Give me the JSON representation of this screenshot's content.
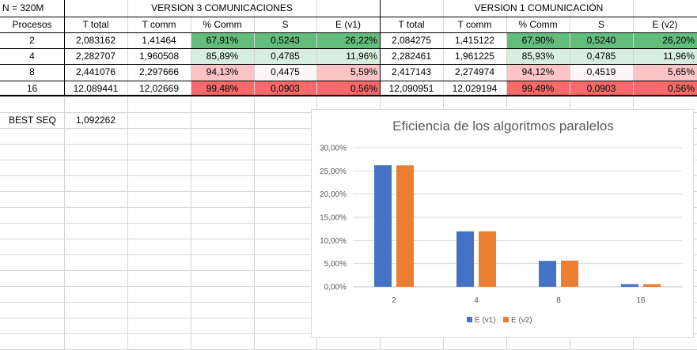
{
  "sheet": {
    "corner_label": "N = 320M",
    "group_headers": [
      "VERSION 3 COMUNICACIONES",
      "VERSION 1 COMUNICACIÓN"
    ],
    "column_headers": [
      "Procesos",
      "T total",
      "T comm",
      "% Comm",
      "S",
      "E (v1)",
      "T total",
      "T comm",
      "% Comm",
      "S",
      "E (v2)"
    ],
    "rows": [
      [
        "2",
        "2,083162",
        "1,41464",
        "67,91%",
        "0,5243",
        "26,22%",
        "2,084275",
        "1,415122",
        "67,90%",
        "0,5240",
        "26,20%"
      ],
      [
        "4",
        "2,282707",
        "1,960508",
        "85,89%",
        "0,4785",
        "11,96%",
        "2,282461",
        "1,961225",
        "85,93%",
        "0,4785",
        "11,96%"
      ],
      [
        "8",
        "2,441076",
        "2,297666",
        "94,13%",
        "0,4475",
        "5,59%",
        "2,417143",
        "2,274974",
        "94,12%",
        "0,4519",
        "5,65%"
      ],
      [
        "16",
        "12,089441",
        "12,02669",
        "99,48%",
        "0,0903",
        "0,56%",
        "12,090951",
        "12,029194",
        "99,49%",
        "0,0903",
        "0,56%"
      ]
    ],
    "row_fills": [
      [
        "#63be7b",
        "#63be7b",
        "#63be7b",
        "#63be7b",
        "#63be7b",
        "#63be7b"
      ],
      [
        "#d8efdf",
        "#d8efdf",
        "#d8efdf",
        "#d8efdf",
        "#d8efdf",
        "#d8efdf"
      ],
      [
        "#fcc4c7",
        "#fcf6f8",
        "#fcc4c7",
        "#fcc4c7",
        "#fcf6f8",
        "#fcc4c7"
      ],
      [
        "#f8696b",
        "#f8696b",
        "#f8696b",
        "#f8696b",
        "#f8696b",
        "#f8696b"
      ]
    ],
    "best_seq_label": "BEST SEQ",
    "best_seq_value": "1,092262"
  },
  "chart_data": {
    "type": "bar",
    "title": "Eficiencia de los algoritmos paralelos",
    "categories": [
      "2",
      "4",
      "8",
      "16"
    ],
    "series": [
      {
        "name": "E (v1)",
        "values": [
          26.22,
          11.96,
          5.59,
          0.56
        ],
        "color": "#4472c4"
      },
      {
        "name": "E (v2)",
        "values": [
          26.2,
          11.96,
          5.65,
          0.56
        ],
        "color": "#ed7d31"
      }
    ],
    "ylim": [
      0,
      30
    ],
    "yticks": [
      "0,00%",
      "5,00%",
      "10,00%",
      "15,00%",
      "20,00%",
      "25,00%",
      "30,00%"
    ],
    "grid": true,
    "legend": "bottom"
  }
}
